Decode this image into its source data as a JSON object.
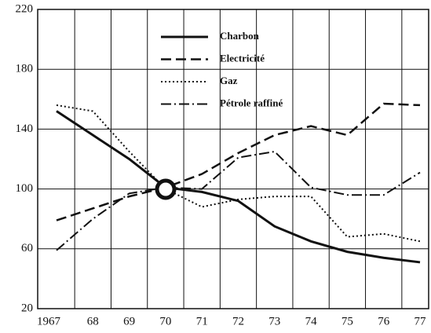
{
  "chart_data": {
    "type": "line",
    "categories": [
      "1967",
      "68",
      "69",
      "70",
      "71",
      "72",
      "73",
      "74",
      "75",
      "76",
      "77"
    ],
    "series": [
      {
        "name": "Charbon",
        "color": "#111111",
        "dash": "solid",
        "values": [
          152,
          136,
          120,
          101,
          98,
          92,
          75,
          65,
          58,
          54,
          51
        ]
      },
      {
        "name": "Electricité",
        "color": "#111111",
        "dash": "dashed",
        "values": [
          79,
          87,
          95,
          101,
          110,
          124,
          136,
          142,
          136,
          157,
          156
        ]
      },
      {
        "name": "Gaz",
        "color": "#111111",
        "dash": "dotted",
        "values": [
          156,
          152,
          125,
          100,
          88,
          93,
          95,
          95,
          68,
          70,
          65
        ]
      },
      {
        "name": "Pétrole raffiné",
        "color": "#111111",
        "dash": "dashdot",
        "values": [
          59,
          80,
          97,
          101,
          100,
          121,
          125,
          101,
          96,
          96,
          111
        ]
      }
    ],
    "ylim": [
      20,
      220
    ],
    "yticks": [
      20,
      60,
      100,
      140,
      180,
      220
    ],
    "grid": true,
    "legend": "top"
  }
}
